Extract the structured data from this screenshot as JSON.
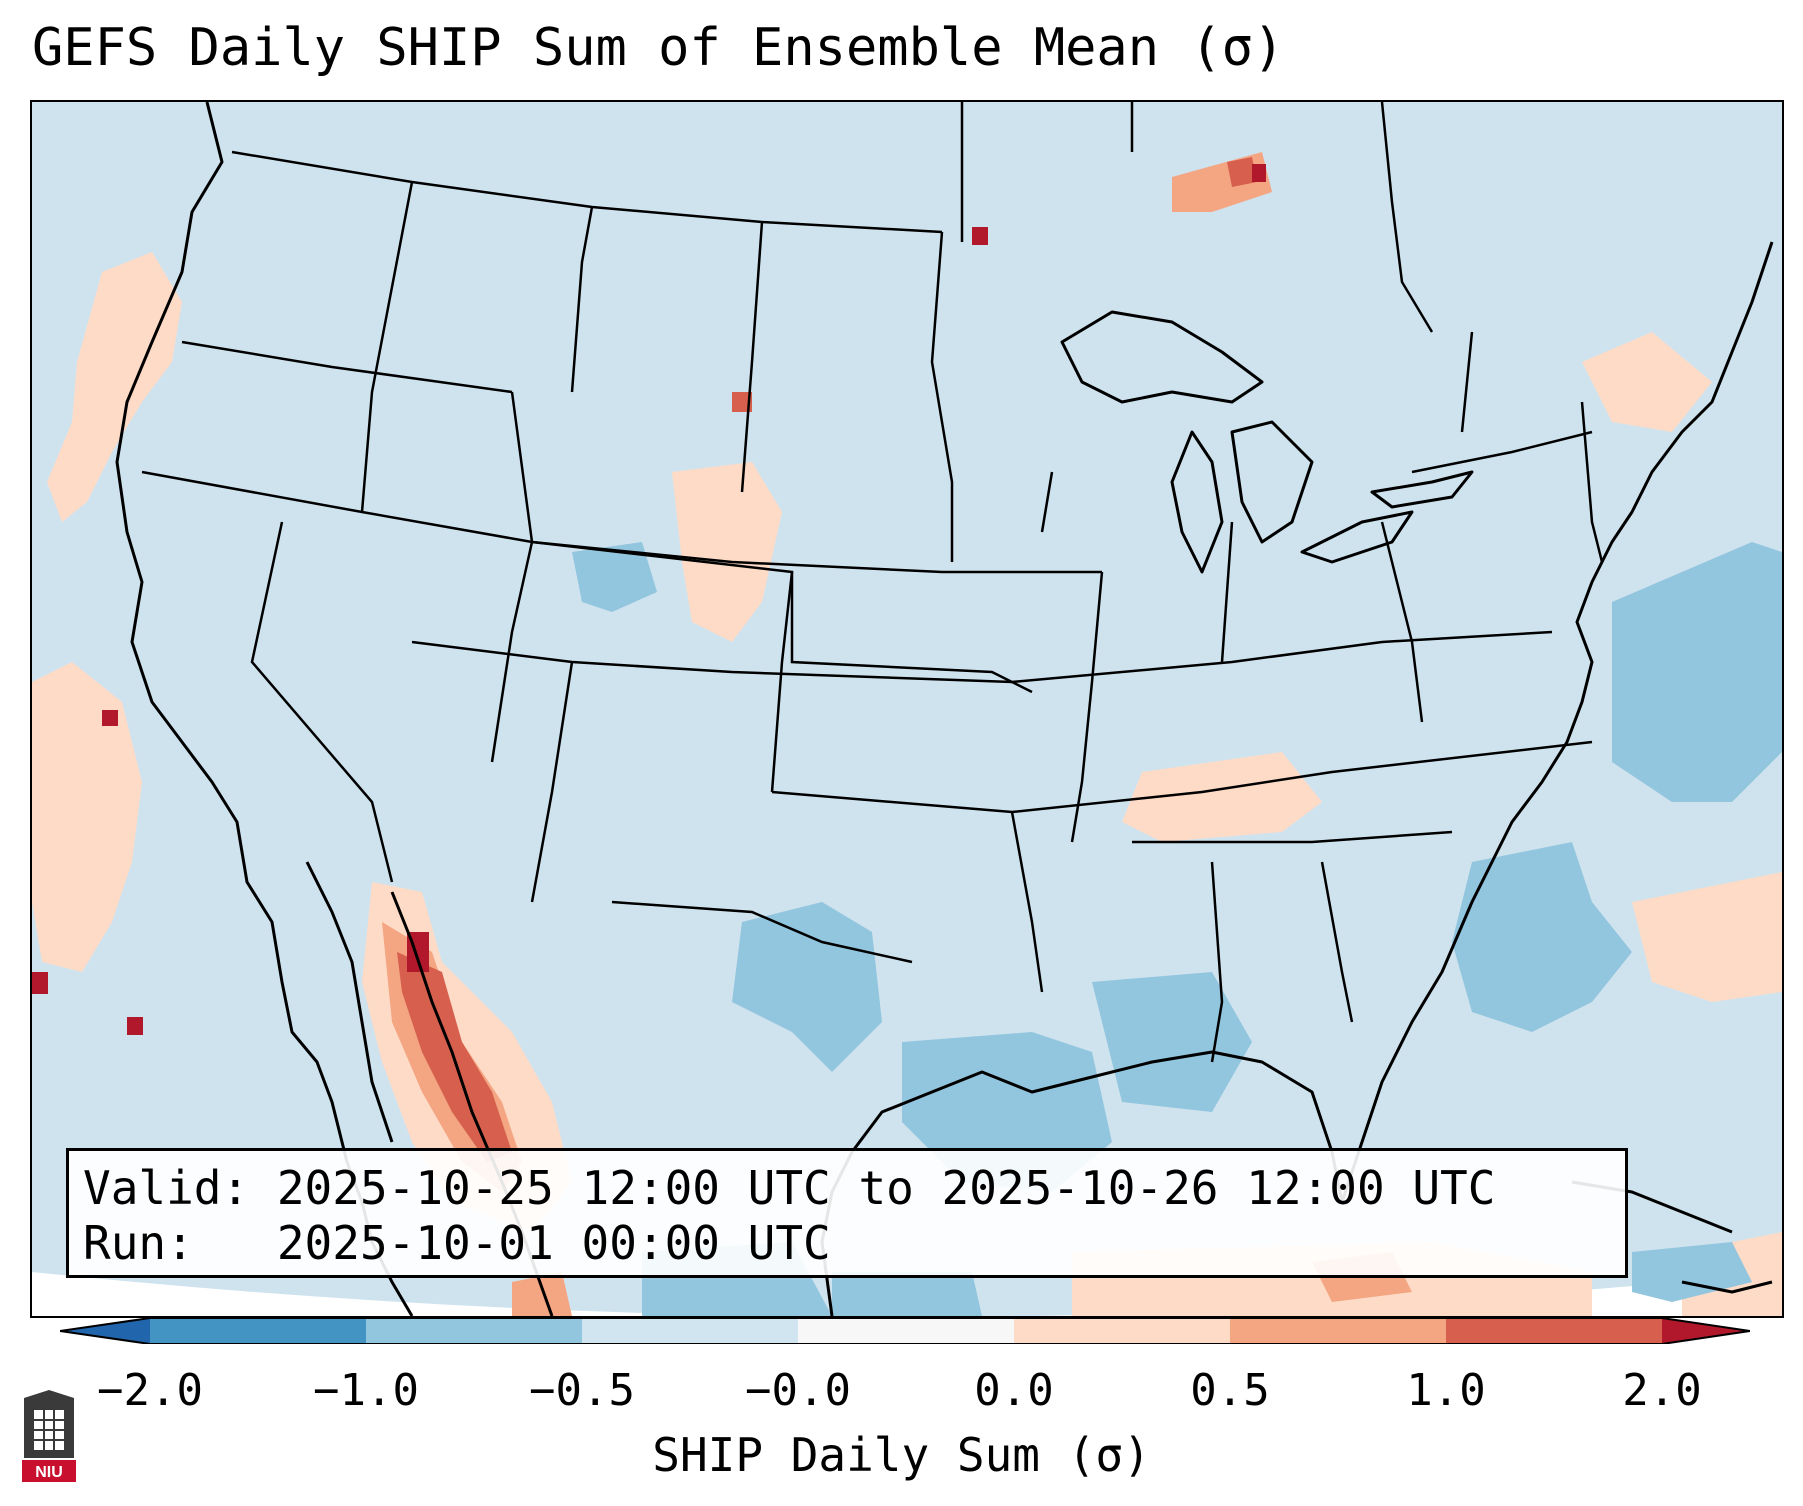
{
  "title": "GEFS Daily SHIP Sum of Ensemble Mean (σ)",
  "info": {
    "valid_line": "Valid: 2025-10-25 12:00 UTC to 2025-10-26 12:00 UTC",
    "run_line": "Run:   2025-10-01 00:00 UTC"
  },
  "colorbar": {
    "label": "SHIP Daily Sum (σ)",
    "ticks": [
      "−2.0",
      "−1.0",
      "−0.5",
      "−0.0",
      "0.0",
      "0.5",
      "1.0",
      "2.0"
    ],
    "colors": [
      "#4393c3",
      "#92c5de",
      "#d1e5f0",
      "#f7f7f7",
      "#fddbc7",
      "#f4a582",
      "#d6604d",
      "#b2182b"
    ],
    "extend_low_color": "#2166ac",
    "extend_high_color": "#b2182b"
  },
  "logo": {
    "text": "NIU",
    "color": "#c8102e"
  },
  "map": {
    "background_color": "#cfe3ef",
    "coast_color": "#000000"
  }
}
